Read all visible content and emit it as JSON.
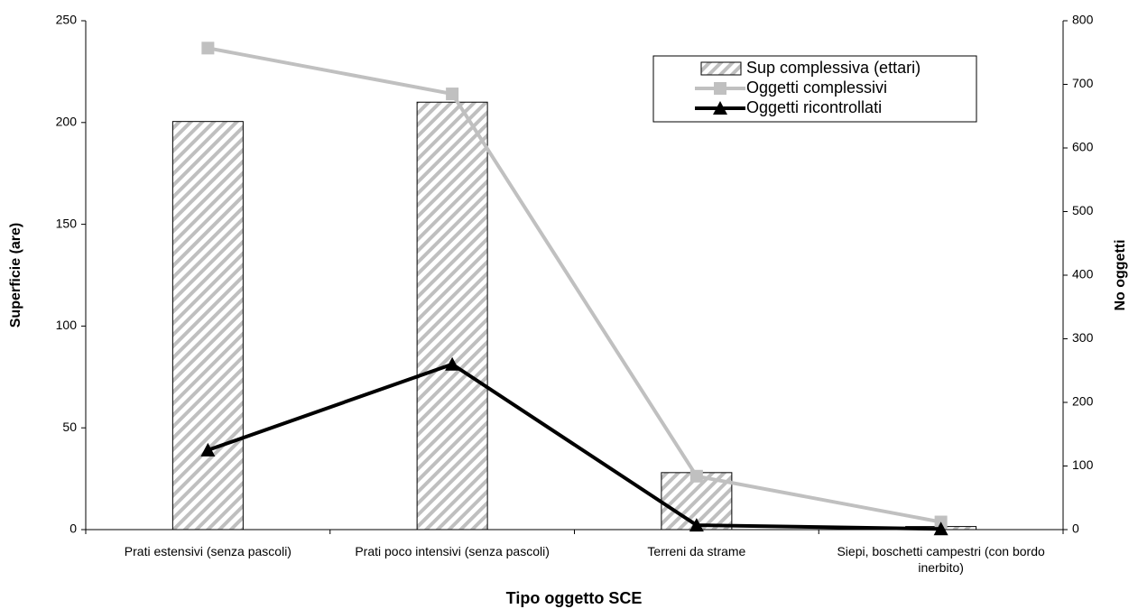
{
  "chart_data": {
    "type": "bar-line",
    "xlabel": "Tipo oggetto SCE",
    "ylabel": "Superficie (are)",
    "y2label": "No oggetti",
    "categories": [
      "Prati estensivi (senza pascoli)",
      "Prati poco intensivi (senza pascoli)",
      "Terreni da strame",
      "Siepi, boschetti campestri (con bordo inerbito)"
    ],
    "series": [
      {
        "name": "Sup complessiva (ettari)",
        "type": "bar",
        "axis": "y",
        "color": "#bfbfbf",
        "values": [
          200.5,
          210,
          28,
          1.5
        ]
      },
      {
        "name": "Oggetti complessivi",
        "type": "line",
        "axis": "y2",
        "color": "#c0c0c0",
        "marker": "square",
        "values": [
          757,
          685,
          84,
          12
        ]
      },
      {
        "name": "Oggetti ricontrollati",
        "type": "line",
        "axis": "y2",
        "color": "#000000",
        "marker": "triangle",
        "values": [
          125,
          260,
          7,
          1
        ]
      }
    ],
    "ylim": [
      0,
      250
    ],
    "yticks": [
      0,
      50,
      100,
      150,
      200,
      250
    ],
    "y2lim": [
      0,
      800
    ],
    "y2ticks": [
      0,
      100,
      200,
      300,
      400,
      500,
      600,
      700,
      800
    ],
    "grid": false
  }
}
